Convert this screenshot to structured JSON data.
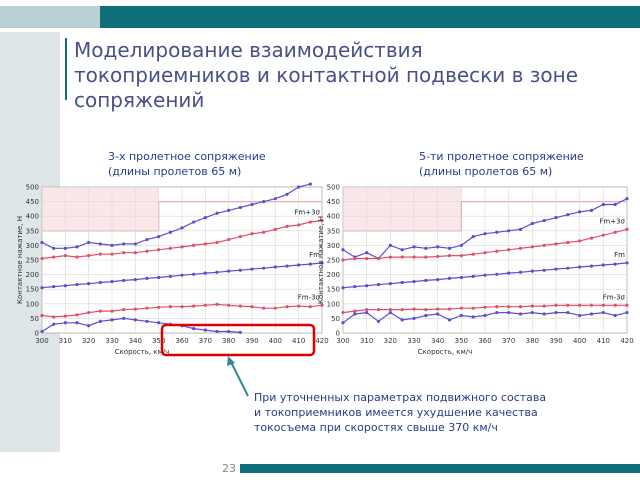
{
  "slide_title": [
    "Моделирование взаимодействия",
    "токоприемников и контактной подвески в зоне",
    "сопряжений"
  ],
  "annotation": [
    "При уточненных параметрах подвижного состава",
    "и токоприемников имеется ухудшение качества",
    "токосъема при скоростях свыше 370 км/ч"
  ],
  "page_number": "23",
  "chart_data": [
    {
      "type": "line",
      "title": "3-х пролетное сопряжение",
      "subtitle": "(длины пролетов 65 м)",
      "x_label": "Скорость, км/ч",
      "y_label": "Контактное нажатие, Н",
      "x": [
        300,
        305,
        310,
        315,
        320,
        325,
        330,
        335,
        340,
        345,
        350,
        355,
        360,
        365,
        370,
        375,
        380,
        385,
        390,
        395,
        400,
        405,
        410,
        415,
        420
      ],
      "xlim": [
        300,
        420
      ],
      "xticks": [
        300,
        310,
        320,
        330,
        340,
        350,
        360,
        370,
        380,
        390,
        400,
        410,
        420
      ],
      "ylim": [
        0,
        500
      ],
      "yticks": [
        0,
        50,
        100,
        150,
        200,
        250,
        300,
        350,
        400,
        450,
        500
      ],
      "grid": true,
      "series": [
        {
          "color": "#5b4fd0",
          "values": [
            310,
            290,
            290,
            295,
            310,
            305,
            300,
            305,
            305,
            320,
            330,
            345,
            360,
            380,
            395,
            410,
            420,
            430,
            440,
            450,
            460,
            475,
            500,
            510,
            null
          ]
        },
        {
          "name": "Fm+3σ",
          "color": "#e0506a",
          "values": [
            255,
            260,
            265,
            260,
            265,
            270,
            270,
            275,
            275,
            280,
            285,
            290,
            295,
            300,
            305,
            310,
            320,
            330,
            340,
            345,
            355,
            365,
            370,
            380,
            385
          ]
        },
        {
          "name": "Fm",
          "color": "#5b4fd0",
          "values": [
            155,
            159,
            162,
            166,
            169,
            173,
            176,
            180,
            183,
            187,
            190,
            194,
            198,
            201,
            205,
            208,
            212,
            215,
            219,
            222,
            226,
            229,
            233,
            236,
            240
          ]
        },
        {
          "name": "Fm-3σ",
          "color": "#e0506a",
          "values": [
            60,
            55,
            58,
            62,
            70,
            75,
            75,
            80,
            82,
            85,
            88,
            90,
            90,
            92,
            95,
            98,
            95,
            92,
            90,
            85,
            85,
            90,
            92,
            90,
            95
          ]
        },
        {
          "color": "#5b4fd0",
          "values": [
            5,
            30,
            35,
            35,
            25,
            40,
            45,
            50,
            45,
            40,
            35,
            30,
            25,
            15,
            10,
            5,
            5,
            2,
            null,
            null,
            null,
            null,
            null,
            null,
            null
          ]
        }
      ]
    },
    {
      "type": "line",
      "title": "5-ти пролетное сопряжение",
      "subtitle": "(длины пролетов 65 м)",
      "x_label": "Скорость, км/ч",
      "y_label": "Контактное нажатие, Н",
      "x": [
        300,
        305,
        310,
        315,
        320,
        325,
        330,
        335,
        340,
        345,
        350,
        355,
        360,
        365,
        370,
        375,
        380,
        385,
        390,
        395,
        400,
        405,
        410,
        415,
        420
      ],
      "xlim": [
        300,
        420
      ],
      "xticks": [
        300,
        310,
        320,
        330,
        340,
        350,
        360,
        370,
        380,
        390,
        400,
        410,
        420
      ],
      "ylim": [
        0,
        500
      ],
      "yticks": [
        0,
        50,
        100,
        150,
        200,
        250,
        300,
        350,
        400,
        450,
        500
      ],
      "grid": true,
      "series": [
        {
          "color": "#5b4fd0",
          "values": [
            285,
            260,
            275,
            255,
            300,
            285,
            295,
            290,
            295,
            290,
            300,
            330,
            340,
            345,
            350,
            355,
            375,
            385,
            395,
            405,
            415,
            420,
            440,
            440,
            460
          ]
        },
        {
          "name": "Fm+3σ",
          "color": "#e0506a",
          "values": [
            250,
            255,
            255,
            255,
            260,
            260,
            260,
            260,
            262,
            265,
            265,
            270,
            275,
            280,
            285,
            290,
            295,
            300,
            305,
            310,
            315,
            325,
            335,
            345,
            355
          ]
        },
        {
          "name": "Fm",
          "color": "#5b4fd0",
          "values": [
            155,
            159,
            162,
            166,
            169,
            173,
            176,
            180,
            183,
            187,
            190,
            194,
            198,
            201,
            205,
            208,
            212,
            215,
            219,
            222,
            226,
            229,
            233,
            236,
            240
          ]
        },
        {
          "name": "Fm-3σ",
          "color": "#e0506a",
          "values": [
            70,
            75,
            80,
            80,
            80,
            80,
            82,
            80,
            82,
            82,
            85,
            85,
            88,
            90,
            90,
            90,
            92,
            92,
            95,
            95,
            95,
            95,
            95,
            95,
            95
          ]
        },
        {
          "color": "#5b4fd0",
          "values": [
            35,
            65,
            70,
            40,
            70,
            45,
            50,
            60,
            65,
            45,
            60,
            55,
            60,
            70,
            70,
            65,
            70,
            65,
            70,
            70,
            60,
            65,
            70,
            60,
            70
          ]
        }
      ]
    }
  ]
}
